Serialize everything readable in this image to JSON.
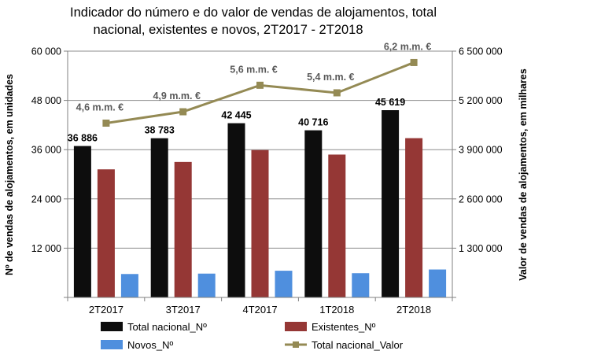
{
  "chart_data": {
    "type": "bar",
    "title_lines": [
      "Indicador do número e do valor de vendas de alojamentos, total",
      "nacional, existentes e novos, 2T2017 - 2T2018"
    ],
    "categories": [
      "2T2017",
      "3T2017",
      "4T2017",
      "1T2018",
      "2T2018"
    ],
    "ylabel": "Nº de vendas de alojamentos, em unidades",
    "y2label": "Valor de vendas de alojamentos, em milhares",
    "ylim": [
      0,
      60000
    ],
    "y2lim": [
      0,
      6500000
    ],
    "y_ticks": [
      0,
      12000,
      24000,
      36000,
      48000,
      60000
    ],
    "y_tick_labels": [
      "",
      "12 000",
      "24 000",
      "36 000",
      "48 000",
      "60 000"
    ],
    "y2_ticks": [
      0,
      1300000,
      2600000,
      3900000,
      5200000,
      6500000
    ],
    "y2_tick_labels": [
      "",
      "1 300 000",
      "2 600 000",
      "3 900 000",
      "5 200 000",
      "6 500 000"
    ],
    "series": [
      {
        "name": "Total nacional_Nº",
        "type": "bar",
        "axis": "left",
        "color": "#0d0d0d",
        "values": [
          36886,
          38783,
          42445,
          40716,
          45619
        ],
        "labels": [
          "36 886",
          "38 783",
          "42 445",
          "40 716",
          "45 619"
        ]
      },
      {
        "name": "Existentes_Nº",
        "type": "bar",
        "axis": "left",
        "color": "#953735",
        "values": [
          31200,
          33000,
          35900,
          34800,
          38800
        ]
      },
      {
        "name": "Novos_Nº",
        "type": "bar",
        "axis": "left",
        "color": "#4f8fde",
        "values": [
          5700,
          5800,
          6500,
          5900,
          6800
        ]
      },
      {
        "name": "Total nacional_Valor",
        "type": "line",
        "axis": "right",
        "color": "#948a54",
        "values": [
          4600000,
          4900000,
          5600000,
          5400000,
          6200000
        ],
        "labels": [
          "4,6 m.m. €",
          "4,9 m.m. €",
          "5,6 m.m. €",
          "5,4 m.m. €",
          "6,2 m.m. €"
        ]
      }
    ],
    "legend_position": "bottom"
  }
}
